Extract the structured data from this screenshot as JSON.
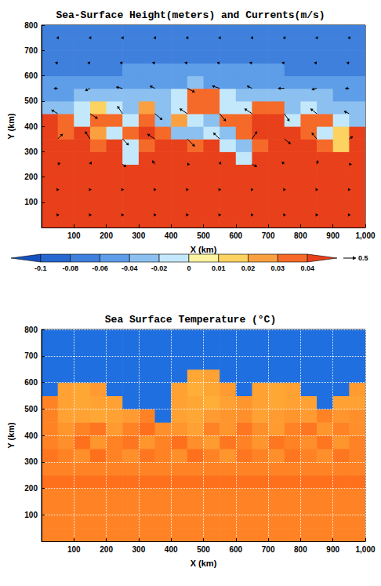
{
  "chart_data": [
    {
      "type": "heatmap",
      "title": "Sea-Surface Height(meters) and Currents(m/s)",
      "x_label": "X (km)",
      "y_label": "Y (km)",
      "xlim": [
        0,
        1000
      ],
      "xticks": [
        100,
        200,
        300,
        400,
        500,
        600,
        700,
        800,
        900,
        1000
      ],
      "ylim": [
        0,
        800
      ],
      "yticks": [
        100,
        200,
        300,
        400,
        500,
        600,
        700,
        800
      ],
      "grid": false,
      "cells": {
        "x": [
          25,
          75,
          125,
          175,
          225,
          275,
          325,
          375,
          425,
          475,
          525,
          575,
          625,
          675,
          725,
          775,
          825,
          875,
          925,
          975
        ],
        "y": [
          25,
          75,
          125,
          175,
          225,
          275,
          325,
          375,
          425,
          475,
          525,
          575,
          625,
          675,
          725,
          775
        ],
        "values": [
          [
            0.045,
            0.045,
            0.045,
            0.045,
            0.045,
            0.045,
            0.045,
            0.045,
            0.045,
            0.045,
            0.045,
            0.045,
            0.045,
            0.045,
            0.045,
            0.045,
            0.045,
            0.045,
            0.045,
            0.045
          ],
          [
            0.045,
            0.045,
            0.045,
            0.045,
            0.045,
            0.045,
            0.045,
            0.045,
            0.045,
            0.045,
            0.045,
            0.045,
            0.045,
            0.045,
            0.045,
            0.045,
            0.045,
            0.045,
            0.045,
            0.045
          ],
          [
            0.045,
            0.045,
            0.045,
            0.045,
            0.045,
            0.045,
            0.045,
            0.045,
            0.045,
            0.045,
            0.045,
            0.045,
            0.045,
            0.045,
            0.045,
            0.045,
            0.045,
            0.045,
            0.045,
            0.045
          ],
          [
            0.045,
            0.045,
            0.045,
            0.045,
            0.045,
            0.045,
            0.045,
            0.045,
            0.045,
            0.045,
            0.045,
            0.045,
            0.045,
            0.045,
            0.045,
            0.045,
            0.045,
            0.045,
            0.045,
            0.045
          ],
          [
            0.045,
            0.045,
            0.045,
            0.045,
            0.045,
            0.045,
            0.045,
            0.045,
            0.045,
            0.045,
            0.045,
            0.045,
            0.045,
            0.045,
            0.045,
            0.045,
            0.045,
            0.045,
            0.045,
            0.045
          ],
          [
            0.045,
            0.045,
            0.045,
            0.045,
            0.045,
            -0.01,
            0.04,
            0.045,
            0.045,
            0.045,
            0.045,
            0.045,
            -0.02,
            0.045,
            0.045,
            0.045,
            0.045,
            0.045,
            0.045,
            0.045
          ],
          [
            0.045,
            0.04,
            0.045,
            0.035,
            0.04,
            -0.02,
            0.03,
            0.045,
            0.04,
            0.035,
            0.045,
            -0.01,
            -0.03,
            0.03,
            0.045,
            0.045,
            0.04,
            0.035,
            0.01,
            0.045
          ],
          [
            0.045,
            0.035,
            0.04,
            0.02,
            -0.02,
            0.035,
            0.04,
            0.03,
            -0.03,
            -0.04,
            -0.02,
            -0.03,
            0.035,
            0.045,
            0.045,
            0.04,
            0.035,
            -0.01,
            0.01,
            0.04
          ],
          [
            0.04,
            0.03,
            -0.02,
            0.03,
            0.035,
            -0.02,
            0.03,
            -0.03,
            0.02,
            -0.02,
            -0.03,
            0.03,
            0.035,
            0.04,
            0.04,
            -0.01,
            0.03,
            0.03,
            -0.02,
            -0.03
          ],
          [
            -0.04,
            -0.03,
            -0.01,
            0.01,
            -0.02,
            -0.03,
            0.02,
            -0.03,
            -0.02,
            0.035,
            0.035,
            -0.01,
            -0.02,
            0.03,
            0.03,
            -0.03,
            -0.02,
            -0.03,
            -0.04,
            -0.04
          ],
          [
            -0.05,
            -0.05,
            -0.04,
            -0.03,
            -0.04,
            -0.04,
            -0.03,
            -0.03,
            -0.02,
            0.03,
            0.03,
            -0.02,
            -0.04,
            -0.03,
            -0.04,
            -0.04,
            -0.03,
            -0.04,
            -0.05,
            -0.05
          ],
          [
            -0.06,
            -0.06,
            -0.05,
            -0.05,
            -0.05,
            -0.05,
            -0.05,
            -0.05,
            -0.05,
            -0.04,
            -0.05,
            -0.05,
            -0.05,
            -0.05,
            -0.05,
            -0.05,
            -0.06,
            -0.06,
            -0.06,
            -0.06
          ],
          [
            -0.07,
            -0.07,
            -0.07,
            -0.065,
            -0.065,
            -0.06,
            -0.06,
            -0.06,
            -0.055,
            -0.055,
            -0.055,
            -0.055,
            -0.06,
            -0.06,
            -0.06,
            -0.065,
            -0.065,
            -0.07,
            -0.07,
            -0.07
          ],
          [
            -0.075,
            -0.075,
            -0.075,
            -0.075,
            -0.075,
            -0.075,
            -0.075,
            -0.075,
            -0.075,
            -0.075,
            -0.075,
            -0.075,
            -0.075,
            -0.075,
            -0.075,
            -0.075,
            -0.075,
            -0.075,
            -0.075,
            -0.075
          ],
          [
            -0.07,
            -0.07,
            -0.07,
            -0.07,
            -0.07,
            -0.07,
            -0.07,
            -0.07,
            -0.07,
            -0.07,
            -0.07,
            -0.07,
            -0.07,
            -0.07,
            -0.07,
            -0.07,
            -0.07,
            -0.07,
            -0.07,
            -0.07
          ],
          [
            -0.07,
            -0.07,
            -0.07,
            -0.07,
            -0.07,
            -0.07,
            -0.07,
            -0.07,
            -0.07,
            -0.07,
            -0.07,
            -0.07,
            -0.07,
            -0.07,
            -0.07,
            -0.07,
            -0.07,
            -0.07,
            -0.07,
            -0.07
          ]
        ]
      },
      "colorbar": {
        "ticks": [
          -0.1,
          -0.08,
          -0.06,
          -0.04,
          -0.02,
          0,
          0.01,
          0.02,
          0.03,
          0.04
        ],
        "colors": [
          "#1552c0",
          "#2668d0",
          "#3f80dd",
          "#5e9de8",
          "#8cc0f0",
          "#c4e8fb",
          "#fdf3a0",
          "#fcd260",
          "#faa040",
          "#f56a28",
          "#e8401a"
        ]
      },
      "vectors": {
        "x": [
          50,
          150,
          250,
          350,
          450,
          550,
          650,
          750,
          850,
          950
        ],
        "y": [
          50,
          150,
          250,
          350,
          450,
          550,
          650,
          750
        ],
        "u": [
          [
            0.05,
            0.05,
            0.05,
            0.05,
            0.05,
            0.05,
            0.05,
            0.05,
            0.05,
            0.05
          ],
          [
            0.05,
            0.05,
            0.05,
            0.05,
            0.05,
            0.05,
            0.05,
            0.05,
            0.05,
            0.05
          ],
          [
            0.1,
            0.05,
            0.15,
            -0.1,
            0.1,
            0.05,
            0.2,
            -0.1,
            0.05,
            0.1
          ],
          [
            0.2,
            -0.2,
            0.25,
            -0.3,
            0.3,
            -0.25,
            0.2,
            0.25,
            -0.2,
            0.15
          ],
          [
            -0.25,
            0.3,
            -0.2,
            0.3,
            -0.3,
            0.25,
            -0.3,
            0.2,
            -0.25,
            -0.2
          ],
          [
            -0.15,
            -0.2,
            -0.25,
            -0.2,
            0.3,
            -0.3,
            -0.2,
            -0.25,
            -0.2,
            -0.15
          ],
          [
            -0.1,
            -0.1,
            -0.1,
            -0.1,
            -0.1,
            -0.1,
            -0.1,
            -0.1,
            -0.1,
            -0.1
          ],
          [
            -0.05,
            -0.05,
            -0.05,
            -0.05,
            -0.05,
            -0.05,
            -0.05,
            -0.05,
            -0.05,
            -0.05
          ]
        ],
        "v": [
          [
            0,
            0,
            0,
            0,
            0,
            0,
            0,
            0,
            0,
            0
          ],
          [
            0,
            0,
            0,
            0,
            0,
            0,
            0,
            0,
            0,
            0
          ],
          [
            0.05,
            0.1,
            -0.1,
            0.15,
            0,
            0.1,
            -0.1,
            0.1,
            0.15,
            0
          ],
          [
            0.2,
            0.3,
            -0.25,
            0.2,
            -0.3,
            0.25,
            0.3,
            -0.2,
            0.25,
            0.1
          ],
          [
            0.15,
            -0.2,
            0.3,
            -0.25,
            0.2,
            -0.3,
            0.2,
            -0.3,
            0.2,
            0.1
          ],
          [
            0,
            -0.1,
            0.05,
            0.1,
            -0.15,
            0.1,
            0.1,
            0,
            -0.05,
            0
          ],
          [
            0.02,
            0.02,
            0.02,
            0.02,
            0.02,
            0.02,
            0.02,
            0.02,
            0.02,
            0.02
          ],
          [
            0,
            0,
            0,
            0,
            0,
            0,
            0,
            0,
            0,
            0
          ]
        ]
      },
      "reference_vector": 0.5
    },
    {
      "type": "heatmap",
      "title": "Sea Surface Temperature (°C)",
      "x_label": "X (km)",
      "y_label": "Y (km)",
      "xlim": [
        0,
        1000
      ],
      "xticks": [
        100,
        200,
        300,
        400,
        500,
        600,
        700,
        800,
        900,
        1000
      ],
      "ylim": [
        0,
        800
      ],
      "yticks": [
        100,
        200,
        300,
        400,
        500,
        600,
        700,
        800
      ],
      "grid": true,
      "cells": {
        "x": [
          25,
          75,
          125,
          175,
          225,
          275,
          325,
          375,
          425,
          475,
          525,
          575,
          625,
          675,
          725,
          775,
          825,
          875,
          925,
          975
        ],
        "y": [
          25,
          75,
          125,
          175,
          225,
          275,
          325,
          375,
          425,
          475,
          525,
          575,
          625,
          675,
          725,
          775
        ],
        "values": [
          [
            20,
            20,
            20,
            20,
            20,
            20,
            20,
            20,
            20,
            20,
            20,
            20,
            20,
            20,
            20,
            20,
            20,
            20,
            20,
            20
          ],
          [
            20,
            20,
            20,
            20,
            20,
            20,
            20,
            20,
            20,
            20,
            20,
            20,
            20,
            20,
            20,
            20,
            20,
            20,
            20,
            20
          ],
          [
            20,
            20,
            20,
            20,
            20,
            20,
            20,
            20,
            20,
            20,
            20,
            20,
            20,
            20,
            20,
            20,
            20,
            20,
            20,
            20
          ],
          [
            20,
            20,
            20,
            20,
            20,
            20,
            20,
            20,
            20,
            20,
            20,
            20,
            20,
            20,
            20,
            20,
            20,
            20,
            20,
            20
          ],
          [
            19.7,
            19.7,
            19.7,
            19.7,
            19.7,
            19.7,
            19.7,
            19.7,
            19.7,
            19.7,
            19.7,
            19.7,
            19.7,
            19.7,
            19.7,
            19.7,
            19.7,
            19.7,
            19.7,
            19.7
          ],
          [
            20,
            20,
            20,
            20,
            20,
            20,
            20,
            20,
            20,
            20,
            20,
            20,
            20,
            20,
            20,
            20,
            20,
            20,
            20,
            20
          ],
          [
            19.8,
            20,
            20.2,
            19.7,
            20,
            20.2,
            19.8,
            20,
            20.2,
            19.7,
            20,
            20.3,
            19.8,
            20,
            20.2,
            19.8,
            20,
            20.2,
            19.8,
            20
          ],
          [
            20,
            20.2,
            19.7,
            20.3,
            20,
            19.8,
            20.3,
            20,
            19.7,
            20.2,
            20.4,
            19.8,
            20,
            20.3,
            19.8,
            20,
            20.2,
            19.8,
            20.3,
            20
          ],
          [
            20,
            20.3,
            20,
            19.8,
            20.4,
            20,
            19.7,
            20.2,
            20.3,
            20.5,
            20,
            20.3,
            19.8,
            20.2,
            20.4,
            20,
            19.8,
            20.3,
            20,
            20.2
          ],
          [
            20,
            20.5,
            20.5,
            20.6,
            20.5,
            20.4,
            20,
            12,
            20.5,
            20.6,
            20.4,
            20.3,
            20.2,
            20.5,
            20.4,
            20.3,
            20.4,
            20,
            20.3,
            20.2
          ],
          [
            20,
            20.5,
            20.6,
            20.5,
            20.5,
            12,
            12,
            12,
            20.5,
            20.6,
            20.7,
            20.5,
            20.3,
            20.5,
            20.6,
            20.5,
            20.5,
            12,
            20.5,
            20.5
          ],
          [
            12,
            20.5,
            20.6,
            20.4,
            12,
            12,
            12,
            12,
            20.5,
            20.7,
            20.6,
            20.4,
            12,
            20.5,
            20.6,
            20.5,
            12,
            12,
            12,
            20.4
          ],
          [
            12,
            12,
            12,
            12,
            12,
            12,
            12,
            12,
            12,
            20.6,
            20.5,
            12,
            12,
            12,
            12,
            12,
            12,
            12,
            12,
            12
          ],
          [
            12,
            12,
            12,
            12,
            12,
            12,
            12,
            12,
            12,
            12,
            12,
            12,
            12,
            12,
            12,
            12,
            12,
            12,
            12,
            12
          ],
          [
            12,
            12,
            12,
            12,
            12,
            12,
            12,
            12,
            12,
            12,
            12,
            12,
            12,
            12,
            12,
            12,
            12,
            12,
            12,
            12
          ],
          [
            12,
            12,
            12,
            12,
            12,
            12,
            12,
            12,
            12,
            12,
            12,
            12,
            12,
            12,
            12,
            12,
            12,
            12,
            12,
            12
          ]
        ]
      },
      "zlim": [
        12,
        21
      ],
      "colors": [
        "#1f6fe0",
        "#2a7be5",
        "#5090e0",
        "#c03020",
        "#e03a10",
        "#ff6418",
        "#ffc040"
      ]
    }
  ]
}
